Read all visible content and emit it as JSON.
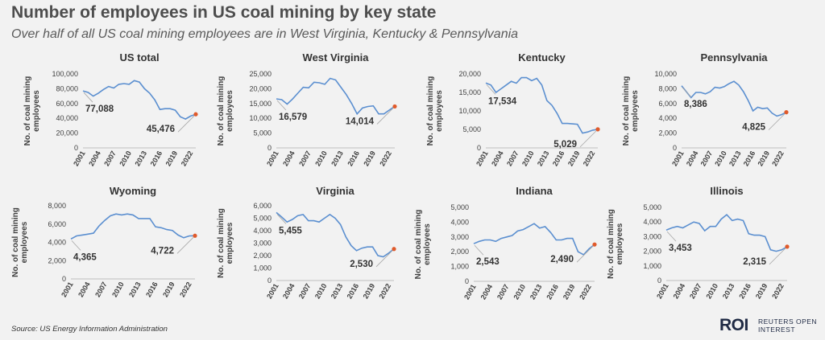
{
  "title": "Number of employees in US coal mining by key state",
  "subtitle": "Over half of all US coal mining employees are in West Virginia, Kentucky & Pennsylvania",
  "source": "Source: US Energy Information Administration",
  "logo": {
    "mark": "ROI",
    "line1": "REUTERS OPEN",
    "line2": "INTEREST"
  },
  "colors": {
    "line": "#5b8fd0",
    "end_point": "#e05a2b"
  },
  "chart_data": [
    {
      "type": "line",
      "title": "US total",
      "ylabel": "No. of coal mining employees",
      "ylim": [
        0,
        100000
      ],
      "yticks": [
        0,
        20000,
        40000,
        60000,
        80000,
        100000
      ],
      "ytick_labels": [
        "0",
        "20,000",
        "40,000",
        "60,000",
        "80,000",
        "100,000"
      ],
      "xticks": [
        "2001",
        "2004",
        "2007",
        "2010",
        "2013",
        "2016",
        "2019",
        "2022"
      ],
      "x": [
        2001,
        2002,
        2003,
        2004,
        2005,
        2006,
        2007,
        2008,
        2009,
        2010,
        2011,
        2012,
        2013,
        2014,
        2015,
        2016,
        2017,
        2018,
        2019,
        2020,
        2021,
        2022,
        2023
      ],
      "values": [
        77088,
        75000,
        70000,
        74000,
        79000,
        83000,
        81000,
        86000,
        87000,
        86000,
        91000,
        89000,
        80000,
        74000,
        65000,
        52000,
        53000,
        53000,
        51000,
        42000,
        39000,
        43000,
        45476
      ],
      "start_label": "77,088",
      "end_label": "45,476"
    },
    {
      "type": "line",
      "title": "West Virginia",
      "ylabel": "No. of coal mining employees",
      "ylim": [
        0,
        25000
      ],
      "yticks": [
        0,
        5000,
        10000,
        15000,
        20000,
        25000
      ],
      "ytick_labels": [
        "0",
        "5,000",
        "10,000",
        "15,000",
        "20,000",
        "25,000"
      ],
      "xticks": [
        "2001",
        "2004",
        "2007",
        "2010",
        "2013",
        "2016",
        "2019",
        "2022"
      ],
      "x": [
        2001,
        2002,
        2003,
        2004,
        2005,
        2006,
        2007,
        2008,
        2009,
        2010,
        2011,
        2012,
        2013,
        2014,
        2015,
        2016,
        2017,
        2018,
        2019,
        2020,
        2021,
        2022,
        2023
      ],
      "values": [
        16579,
        16300,
        14800,
        16500,
        18500,
        20500,
        20300,
        22200,
        22000,
        21500,
        23500,
        23000,
        20500,
        18000,
        15000,
        11500,
        13500,
        14000,
        14200,
        11500,
        11500,
        12800,
        14014
      ],
      "start_label": "16,579",
      "end_label": "14,014"
    },
    {
      "type": "line",
      "title": "Kentucky",
      "ylabel": "No. of coal mining employees",
      "ylim": [
        0,
        20000
      ],
      "yticks": [
        0,
        5000,
        10000,
        15000,
        20000
      ],
      "ytick_labels": [
        "0",
        "5,000",
        "10,000",
        "15,000",
        "20,000"
      ],
      "xticks": [
        "2001",
        "2004",
        "2007",
        "2010",
        "2013",
        "2016",
        "2019",
        "2022"
      ],
      "x": [
        2001,
        2002,
        2003,
        2004,
        2005,
        2006,
        2007,
        2008,
        2009,
        2010,
        2011,
        2012,
        2013,
        2014,
        2015,
        2016,
        2017,
        2018,
        2019,
        2020,
        2021,
        2022,
        2023
      ],
      "values": [
        17534,
        17000,
        15000,
        16000,
        17000,
        18000,
        17500,
        19000,
        19000,
        18200,
        18800,
        17000,
        12800,
        11500,
        9300,
        6600,
        6600,
        6500,
        6400,
        4000,
        4300,
        4800,
        5029
      ],
      "start_label": "17,534",
      "end_label": "5,029"
    },
    {
      "type": "line",
      "title": "Pennsylvania",
      "ylabel": "No. of coal mining employees",
      "ylim": [
        0,
        10000
      ],
      "yticks": [
        0,
        2000,
        4000,
        6000,
        8000,
        10000
      ],
      "ytick_labels": [
        "0",
        "2,000",
        "4,000",
        "6,000",
        "8,000",
        "10,000"
      ],
      "xticks": [
        "2001",
        "2004",
        "2007",
        "2010",
        "2013",
        "2016",
        "2019",
        "2022"
      ],
      "x": [
        2001,
        2002,
        2003,
        2004,
        2005,
        2006,
        2007,
        2008,
        2009,
        2010,
        2011,
        2012,
        2013,
        2014,
        2015,
        2016,
        2017,
        2018,
        2019,
        2020,
        2021,
        2022,
        2023
      ],
      "values": [
        8386,
        7600,
        6800,
        7500,
        7500,
        7300,
        7600,
        8200,
        8100,
        8300,
        8700,
        9000,
        8500,
        7600,
        6400,
        5000,
        5500,
        5300,
        5400,
        4700,
        4300,
        4500,
        4825
      ],
      "start_label": "8,386",
      "end_label": "4,825"
    },
    {
      "type": "line",
      "title": "Wyoming",
      "ylabel": "No. of coal mining employees",
      "ylim": [
        0,
        8000
      ],
      "yticks": [
        0,
        2000,
        4000,
        6000,
        8000
      ],
      "ytick_labels": [
        "0",
        "2,000",
        "4,000",
        "6,000",
        "8,000"
      ],
      "xticks": [
        "2001",
        "2004",
        "2007",
        "2010",
        "2013",
        "2016",
        "2019",
        "2022"
      ],
      "x": [
        2001,
        2002,
        2003,
        2004,
        2005,
        2006,
        2007,
        2008,
        2009,
        2010,
        2011,
        2012,
        2013,
        2014,
        2015,
        2016,
        2017,
        2018,
        2019,
        2020,
        2021,
        2022,
        2023
      ],
      "values": [
        4365,
        4700,
        4800,
        4900,
        5000,
        5800,
        6400,
        6900,
        7100,
        7000,
        7100,
        7000,
        6600,
        6600,
        6600,
        5700,
        5600,
        5400,
        5300,
        4800,
        4500,
        4700,
        4722
      ],
      "start_label": "4,365",
      "end_label": "4,722"
    },
    {
      "type": "line",
      "title": "Virginia",
      "ylabel": "No. of coal mining employees",
      "ylim": [
        0,
        6000
      ],
      "yticks": [
        0,
        1000,
        2000,
        3000,
        4000,
        5000,
        6000
      ],
      "ytick_labels": [
        "0",
        "1,000",
        "2,000",
        "3,000",
        "4,000",
        "5,000",
        "6,000"
      ],
      "xticks": [
        "2001",
        "2004",
        "2007",
        "2010",
        "2013",
        "2016",
        "2019",
        "2022"
      ],
      "x": [
        2001,
        2002,
        2003,
        2004,
        2005,
        2006,
        2007,
        2008,
        2009,
        2010,
        2011,
        2012,
        2013,
        2014,
        2015,
        2016,
        2017,
        2018,
        2019,
        2020,
        2021,
        2022,
        2023
      ],
      "values": [
        5455,
        5100,
        4700,
        4900,
        5200,
        5300,
        4800,
        4800,
        4700,
        5000,
        5300,
        5000,
        4500,
        3500,
        2800,
        2400,
        2600,
        2700,
        2700,
        2000,
        1900,
        2200,
        2530
      ],
      "start_label": "5,455",
      "end_label": "2,530"
    },
    {
      "type": "line",
      "title": "Indiana",
      "ylabel": "No. of coal mining employees",
      "ylim": [
        0,
        5000
      ],
      "yticks": [
        0,
        1000,
        2000,
        3000,
        4000,
        5000
      ],
      "ytick_labels": [
        "0",
        "1,000",
        "2,000",
        "3,000",
        "4,000",
        "5,000"
      ],
      "xticks": [
        "2001",
        "2004",
        "2007",
        "2010",
        "2013",
        "2016",
        "2019",
        "2022"
      ],
      "x": [
        2001,
        2002,
        2003,
        2004,
        2005,
        2006,
        2007,
        2008,
        2009,
        2010,
        2011,
        2012,
        2013,
        2014,
        2015,
        2016,
        2017,
        2018,
        2019,
        2020,
        2021,
        2022,
        2023
      ],
      "values": [
        2543,
        2700,
        2800,
        2800,
        2700,
        2900,
        3000,
        3100,
        3400,
        3500,
        3700,
        3900,
        3600,
        3700,
        3300,
        2800,
        2800,
        2900,
        2900,
        2000,
        1800,
        2200,
        2490
      ],
      "start_label": "2,543",
      "end_label": "2,490"
    },
    {
      "type": "line",
      "title": "Illinois",
      "ylabel": "No. of coal mining employees",
      "ylim": [
        0,
        5000
      ],
      "yticks": [
        0,
        1000,
        2000,
        3000,
        4000,
        5000
      ],
      "ytick_labels": [
        "0",
        "1,000",
        "2,000",
        "3,000",
        "4,000",
        "5,000"
      ],
      "xticks": [
        "2001",
        "2004",
        "2007",
        "2010",
        "2013",
        "2016",
        "2019",
        "2022"
      ],
      "x": [
        2001,
        2002,
        2003,
        2004,
        2005,
        2006,
        2007,
        2008,
        2009,
        2010,
        2011,
        2012,
        2013,
        2014,
        2015,
        2016,
        2017,
        2018,
        2019,
        2020,
        2021,
        2022,
        2023
      ],
      "values": [
        3453,
        3600,
        3700,
        3600,
        3800,
        4000,
        3900,
        3400,
        3700,
        3700,
        4200,
        4500,
        4100,
        4200,
        4100,
        3200,
        3100,
        3100,
        3000,
        2100,
        2000,
        2100,
        2315
      ],
      "start_label": "3,453",
      "end_label": "2,315"
    }
  ]
}
